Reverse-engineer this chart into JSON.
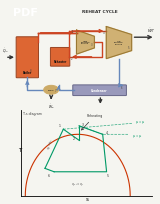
{
  "title": "REHEAT CYCLE",
  "pdf_text": "PDF",
  "pdf_bg": "#1a3a8c",
  "pdf_fg": "#ffffff",
  "bg_color": "#f5f5f0",
  "page_bg": "#f5f5f0",
  "hot_pipe": "#cc4422",
  "cold_pipe": "#6688bb",
  "boiler_fill": "#dd6633",
  "boiler_edge": "#994422",
  "reheater_fill": "#dd6633",
  "turbine_fill": "#ccaa66",
  "turbine_edge": "#997733",
  "condenser_fill": "#9999bb",
  "condenser_edge": "#666688",
  "pump_fill": "#ccaa66",
  "pump_edge": "#997733",
  "dome_color": "#cc3300",
  "cycle_color": "#009966",
  "isobar_color": "#009966",
  "annotation_color": "#333333",
  "label_color": "#222222",
  "title_color": "#333333",
  "ts_label": "T-s diagram",
  "x_axis_label": "s",
  "y_axis_label": "T"
}
